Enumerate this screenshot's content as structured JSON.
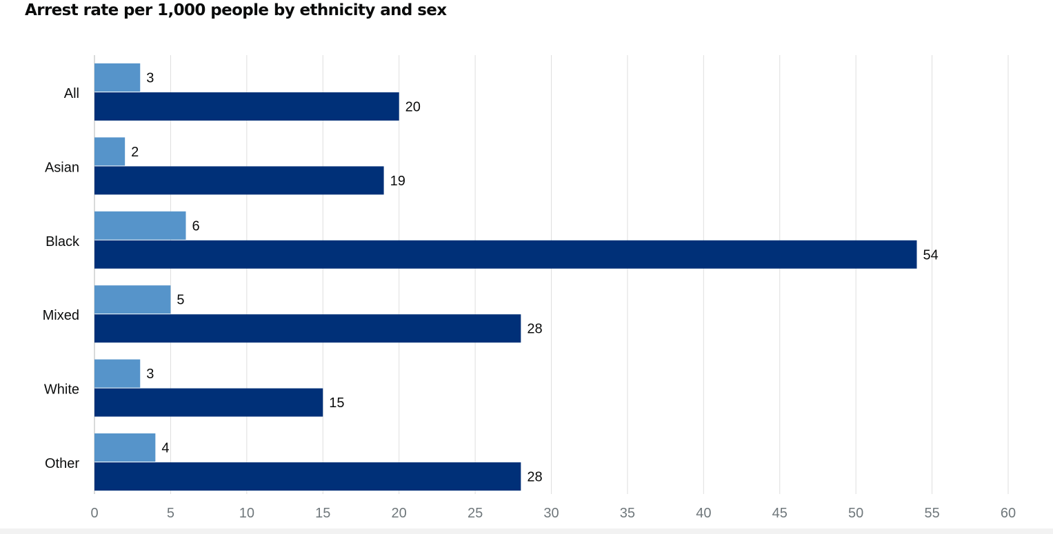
{
  "chart_data": {
    "type": "bar",
    "orientation": "horizontal",
    "title": "Arrest rate per 1,000 people by ethnicity and sex",
    "categories": [
      "All",
      "Asian",
      "Black",
      "Mixed",
      "White",
      "Other"
    ],
    "series": [
      {
        "color": "#5694ca",
        "values": [
          3,
          2,
          6,
          5,
          3,
          4
        ]
      },
      {
        "color": "#003078",
        "values": [
          20,
          19,
          54,
          28,
          15,
          28
        ]
      }
    ],
    "xlim": [
      0,
      60
    ],
    "xticks": [
      0,
      5,
      10,
      15,
      20,
      25,
      30,
      35,
      40,
      45,
      50,
      55,
      60
    ],
    "grid": true,
    "data_labels": true,
    "legend": "none"
  }
}
